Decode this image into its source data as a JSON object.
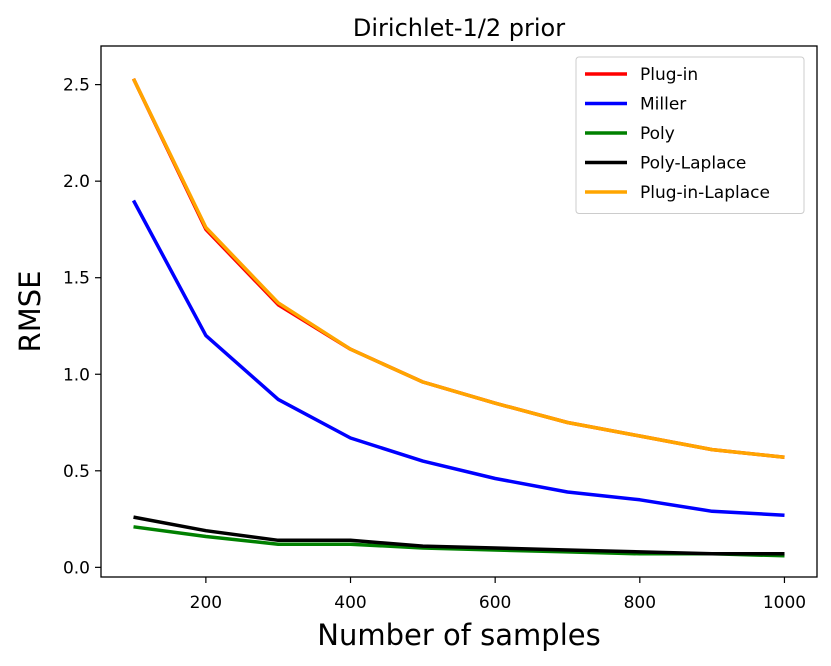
{
  "chart_data": {
    "type": "line",
    "title": "Dirichlet-1/2 prior",
    "xlabel": "Number of samples",
    "ylabel": "RMSE",
    "x": [
      100,
      200,
      300,
      400,
      500,
      600,
      700,
      800,
      900,
      1000
    ],
    "xlim": [
      55,
      1045
    ],
    "ylim": [
      -0.05,
      2.7
    ],
    "xticks": [
      200,
      400,
      600,
      800,
      1000
    ],
    "yticks": [
      0.0,
      0.5,
      1.0,
      1.5,
      2.0,
      2.5
    ],
    "grid": false,
    "legend_position": "top-right",
    "series": [
      {
        "name": "Plug-in",
        "color": "#ff0000",
        "values": [
          2.53,
          1.75,
          1.36,
          1.13,
          0.96,
          0.85,
          0.75,
          0.68,
          0.61,
          0.57
        ]
      },
      {
        "name": "Miller",
        "color": "#0000ff",
        "values": [
          1.9,
          1.2,
          0.87,
          0.67,
          0.55,
          0.46,
          0.39,
          0.35,
          0.29,
          0.27
        ]
      },
      {
        "name": "Poly",
        "color": "#008000",
        "values": [
          0.21,
          0.16,
          0.12,
          0.12,
          0.1,
          0.09,
          0.08,
          0.07,
          0.07,
          0.06
        ]
      },
      {
        "name": "Poly-Laplace",
        "color": "#000000",
        "values": [
          0.26,
          0.19,
          0.14,
          0.14,
          0.11,
          0.1,
          0.09,
          0.08,
          0.07,
          0.07
        ]
      },
      {
        "name": "Plug-in-Laplace",
        "color": "#ffa500",
        "values": [
          2.53,
          1.76,
          1.37,
          1.13,
          0.96,
          0.85,
          0.75,
          0.68,
          0.61,
          0.57
        ]
      }
    ]
  }
}
